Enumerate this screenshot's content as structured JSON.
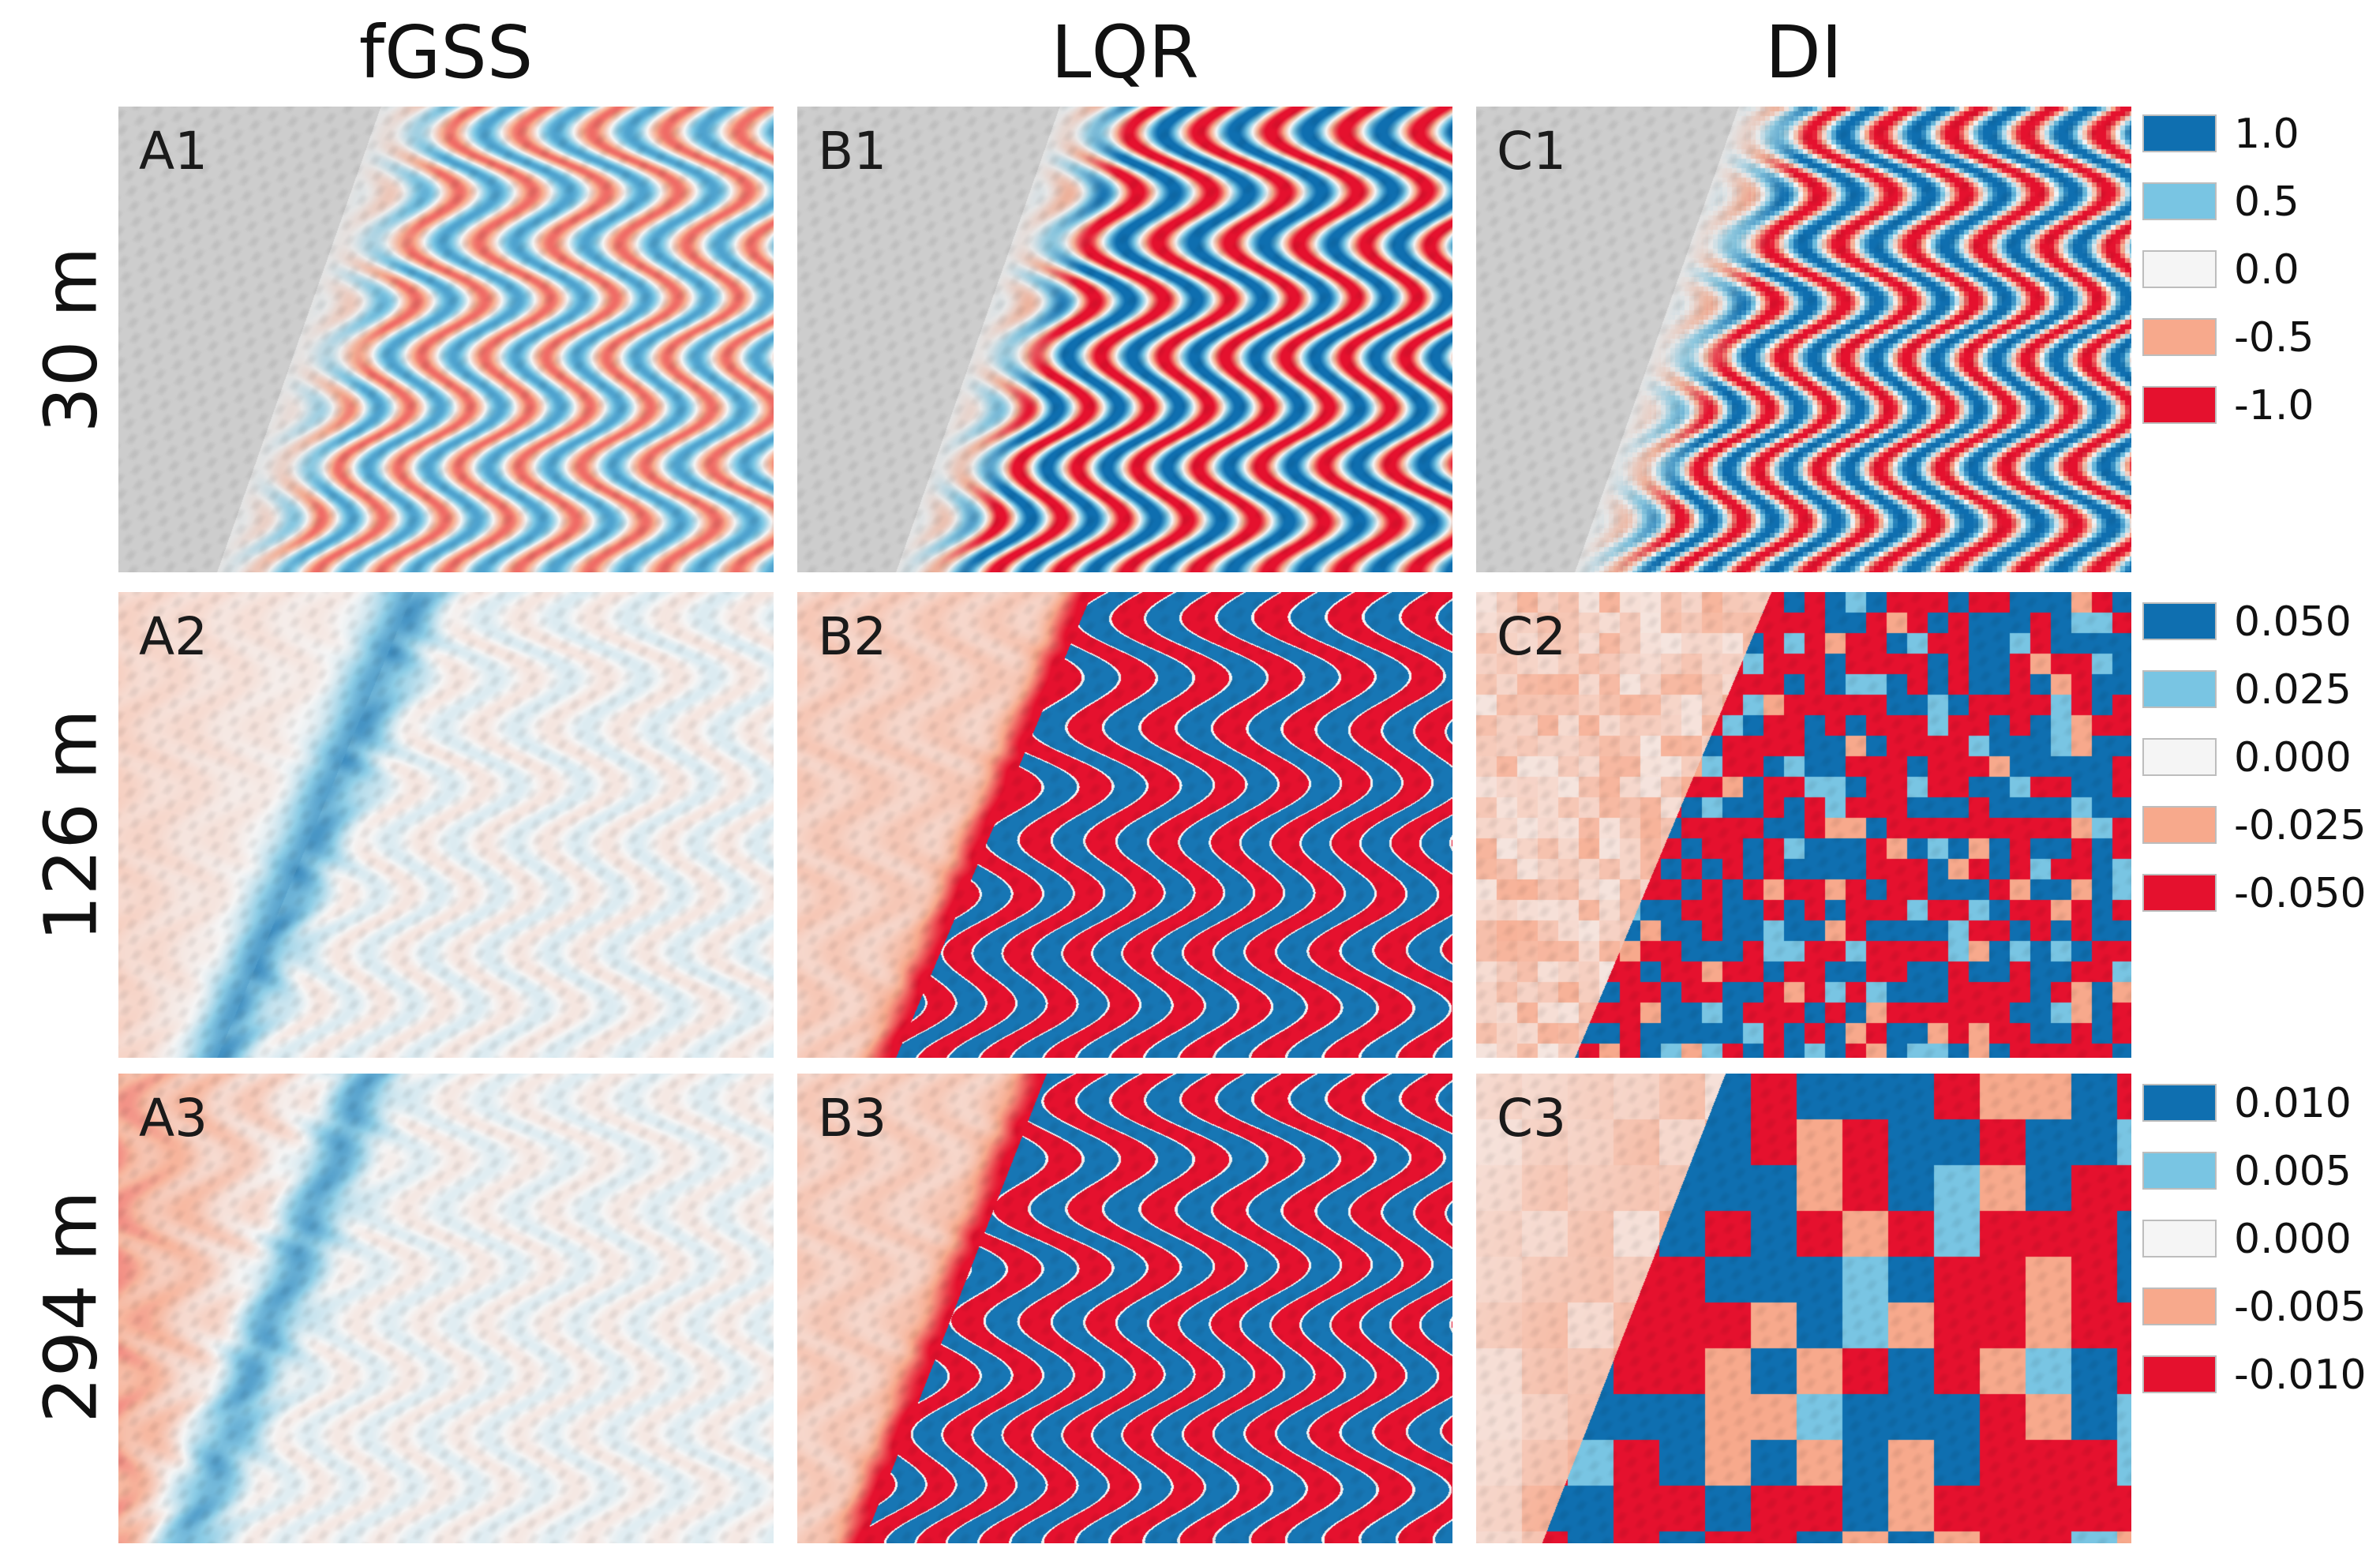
{
  "columns": [
    {
      "key": "A",
      "title": "fGSS"
    },
    {
      "key": "B",
      "title": "LQR"
    },
    {
      "key": "C",
      "title": "DI"
    }
  ],
  "rows": [
    {
      "title": "30 m"
    },
    {
      "title": "126 m"
    },
    {
      "title": "294 m"
    }
  ],
  "panels": [
    [
      "A1",
      "B1",
      "C1"
    ],
    [
      "A2",
      "B2",
      "C2"
    ],
    [
      "A3",
      "B3",
      "C3"
    ]
  ],
  "legends": [
    {
      "items": [
        {
          "label": "1.0",
          "color": "#0f6fb0"
        },
        {
          "label": "0.5",
          "color": "#79c5e3"
        },
        {
          "label": "0.0",
          "color": "#f5f5f5"
        },
        {
          "label": "-0.5",
          "color": "#f7a98c"
        },
        {
          "label": "-1.0",
          "color": "#e5112e"
        }
      ]
    },
    {
      "items": [
        {
          "label": "0.050",
          "color": "#0f6fb0"
        },
        {
          "label": "0.025",
          "color": "#79c5e3"
        },
        {
          "label": "0.000",
          "color": "#f5f5f5"
        },
        {
          "label": "-0.025",
          "color": "#f7a98c"
        },
        {
          "label": "-0.050",
          "color": "#e5112e"
        }
      ]
    },
    {
      "items": [
        {
          "label": "0.010",
          "color": "#0f6fb0"
        },
        {
          "label": "0.005",
          "color": "#79c5e3"
        },
        {
          "label": "0.000",
          "color": "#f5f5f5"
        },
        {
          "label": "-0.005",
          "color": "#f7a98c"
        },
        {
          "label": "-0.010",
          "color": "#e5112e"
        }
      ]
    }
  ]
}
